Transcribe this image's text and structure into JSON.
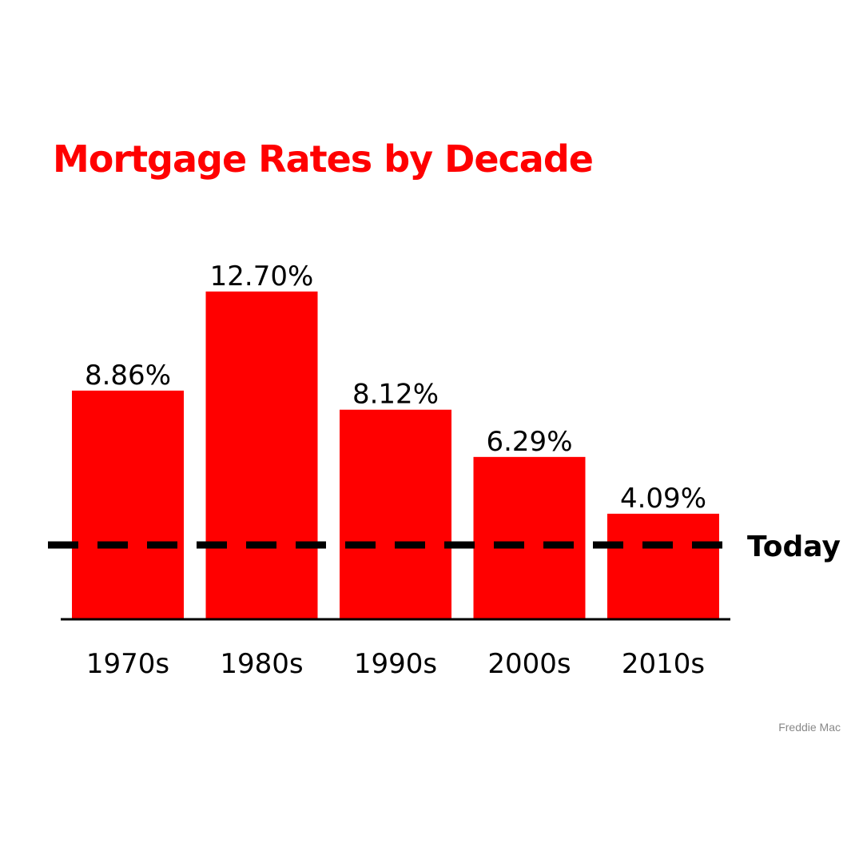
{
  "chart_data": {
    "type": "bar",
    "title": "Mortgage Rates by Decade",
    "categories": [
      "1970s",
      "1980s",
      "1990s",
      "2000s",
      "2010s"
    ],
    "values": [
      8.86,
      12.7,
      8.12,
      6.29,
      4.09
    ],
    "data_labels": [
      "8.86%",
      "12.70%",
      "8.12%",
      "6.29%",
      "4.09%"
    ],
    "xlabel": "",
    "ylabel": "",
    "y_axis_visible": false,
    "grid": false,
    "reference_line": {
      "label": "Today",
      "style": "dashed"
    }
  },
  "colors": {
    "bar": "#ff0000",
    "title": "#ff0000",
    "reference_line": "#000000",
    "axis": "#000000"
  },
  "source": "Freddie Mac"
}
